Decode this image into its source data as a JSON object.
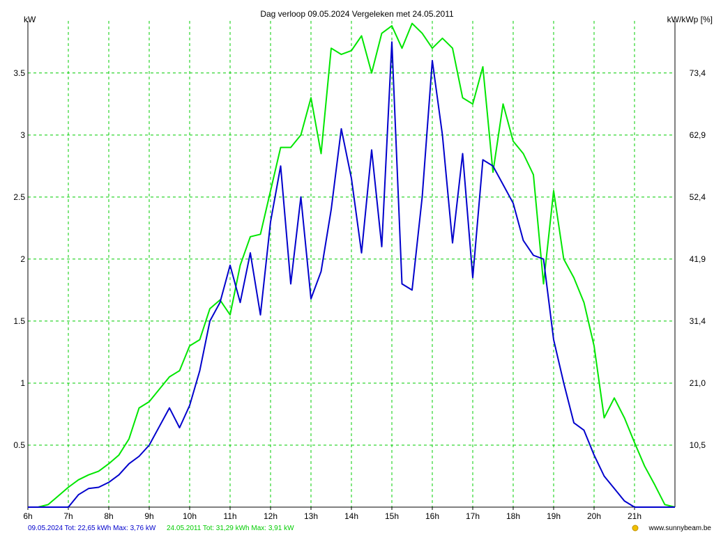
{
  "chart_data": {
    "type": "line",
    "title": "Dag  verloop 09.05.2024   Vergeleken met 24.05.2011",
    "ylabel_left": "kW",
    "ylabel_right": "kW/kWp [%]",
    "x_ticks": [
      "6h",
      "7h",
      "8h",
      "9h",
      "10h",
      "11h",
      "12h",
      "13h",
      "14h",
      "15h",
      "16h",
      "17h",
      "18h",
      "19h",
      "20h",
      "21h"
    ],
    "x_range": [
      6,
      22
    ],
    "y_range": [
      0,
      3.92
    ],
    "y_ticks_left": [
      "0.5",
      "1",
      "1.5",
      "2",
      "2.5",
      "3",
      "3.5"
    ],
    "y_ticks_right": [
      "10,5",
      "21,0",
      "31,4",
      "41,9",
      "52,4",
      "62,9",
      "73,4"
    ],
    "grid": true,
    "colors": {
      "series_2024": "#0000cc",
      "series_2011": "#00e600",
      "grid": "#00cc00",
      "axis": "#000000"
    },
    "x": [
      6.0,
      6.25,
      6.5,
      6.75,
      7.0,
      7.25,
      7.5,
      7.75,
      8.0,
      8.25,
      8.5,
      8.75,
      9.0,
      9.25,
      9.5,
      9.75,
      10.0,
      10.25,
      10.5,
      10.75,
      11.0,
      11.25,
      11.5,
      11.75,
      12.0,
      12.25,
      12.5,
      12.75,
      13.0,
      13.25,
      13.5,
      13.75,
      14.0,
      14.25,
      14.5,
      14.75,
      15.0,
      15.25,
      15.5,
      15.75,
      16.0,
      16.25,
      16.5,
      16.75,
      17.0,
      17.25,
      17.5,
      17.75,
      18.0,
      18.25,
      18.5,
      18.75,
      19.0,
      19.25,
      19.5,
      19.75,
      20.0,
      20.25,
      20.5,
      20.75,
      21.0,
      21.25,
      21.5,
      21.75,
      22.0
    ],
    "series": [
      {
        "name": "09.05.2024",
        "values": [
          0,
          0,
          0,
          0,
          0,
          0.1,
          0.15,
          0.16,
          0.2,
          0.26,
          0.35,
          0.41,
          0.5,
          0.65,
          0.8,
          0.64,
          0.82,
          1.1,
          1.5,
          1.65,
          1.95,
          1.65,
          2.05,
          1.55,
          2.3,
          2.75,
          1.8,
          2.5,
          1.68,
          1.9,
          2.4,
          3.05,
          2.65,
          2.05,
          2.88,
          2.1,
          3.75,
          1.8,
          1.75,
          2.5,
          3.6,
          3.0,
          2.13,
          2.85,
          1.85,
          2.8,
          2.75,
          2.6,
          2.45,
          2.15,
          2.03,
          2.0,
          1.35,
          1.0,
          0.68,
          0.62,
          0.42,
          0.25,
          0.15,
          0.05,
          0,
          0,
          0,
          0,
          0
        ],
        "legend_text": "09.05.2024 Tot: 22,65 kWh Max: 3,76 kW"
      },
      {
        "name": "24.05.2011",
        "values": [
          0,
          0,
          0.02,
          0.09,
          0.16,
          0.22,
          0.26,
          0.29,
          0.35,
          0.42,
          0.55,
          0.8,
          0.85,
          0.95,
          1.05,
          1.1,
          1.3,
          1.35,
          1.6,
          1.67,
          1.55,
          1.95,
          2.18,
          2.2,
          2.55,
          2.9,
          2.9,
          3.0,
          3.3,
          2.85,
          3.7,
          3.65,
          3.68,
          3.8,
          3.5,
          3.82,
          3.88,
          3.7,
          3.9,
          3.82,
          3.7,
          3.78,
          3.7,
          3.3,
          3.25,
          3.55,
          2.7,
          3.25,
          2.95,
          2.85,
          2.68,
          1.8,
          2.55,
          2.0,
          1.85,
          1.65,
          1.3,
          0.72,
          0.88,
          0.72,
          0.52,
          0.33,
          0.18,
          0.02,
          0
        ]
      }
    ],
    "legend_2011": "24.05.2011 Tot: 31,29 kWh Max: 3,91 kW",
    "credit": "www.sunnybeam.be"
  }
}
